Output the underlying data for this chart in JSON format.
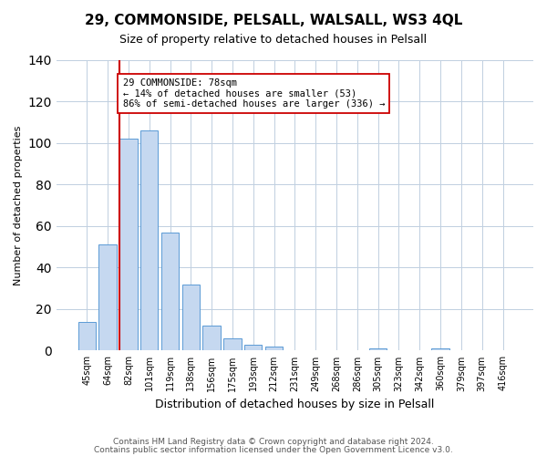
{
  "title": "29, COMMONSIDE, PELSALL, WALSALL, WS3 4QL",
  "subtitle": "Size of property relative to detached houses in Pelsall",
  "xlabel": "Distribution of detached houses by size in Pelsall",
  "ylabel": "Number of detached properties",
  "bin_labels": [
    "45sqm",
    "64sqm",
    "82sqm",
    "101sqm",
    "119sqm",
    "138sqm",
    "156sqm",
    "175sqm",
    "193sqm",
    "212sqm",
    "231sqm",
    "249sqm",
    "268sqm",
    "286sqm",
    "305sqm",
    "323sqm",
    "342sqm",
    "360sqm",
    "379sqm",
    "397sqm",
    "416sqm"
  ],
  "bar_heights": [
    14,
    51,
    102,
    106,
    57,
    32,
    12,
    6,
    3,
    2,
    0,
    0,
    0,
    0,
    1,
    0,
    0,
    1,
    0,
    0,
    0
  ],
  "bar_color": "#c5d8f0",
  "bar_edge_color": "#5b9bd5",
  "vline_x_index": 2,
  "vline_color": "#cc0000",
  "annotation_title": "29 COMMONSIDE: 78sqm",
  "annotation_line1": "← 14% of detached houses are smaller (53)",
  "annotation_line2": "86% of semi-detached houses are larger (336) →",
  "annotation_box_color": "#ffffff",
  "annotation_box_edge": "#cc0000",
  "ylim": [
    0,
    140
  ],
  "yticks": [
    0,
    20,
    40,
    60,
    80,
    100,
    120,
    140
  ],
  "footer1": "Contains HM Land Registry data © Crown copyright and database right 2024.",
  "footer2": "Contains public sector information licensed under the Open Government Licence v3.0.",
  "bg_color": "#ffffff",
  "grid_color": "#c0cfe0"
}
